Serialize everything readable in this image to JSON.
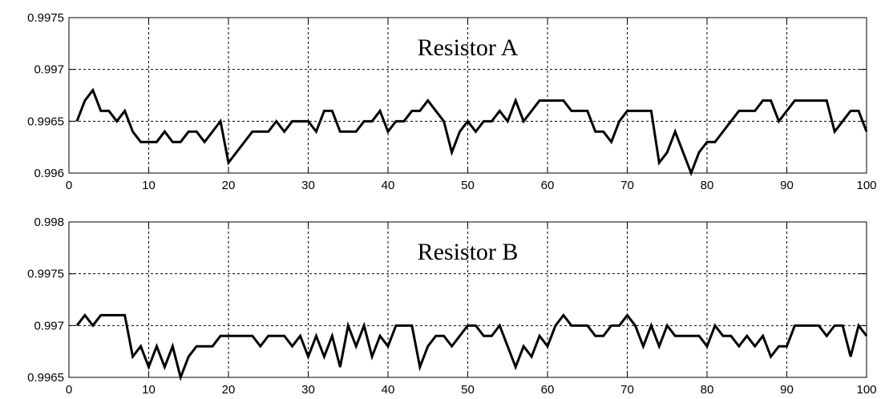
{
  "chart_data": [
    {
      "type": "line",
      "title": "Resistor A",
      "xlabel": "",
      "ylabel": "",
      "xlim": [
        0,
        100
      ],
      "ylim": [
        0.996,
        0.9975
      ],
      "xticks": [
        "0",
        "10",
        "20",
        "30",
        "40",
        "50",
        "60",
        "70",
        "80",
        "90",
        "100"
      ],
      "yticks": [
        "0.996",
        "0.9965",
        "0.997",
        "0.9975"
      ],
      "grid": true,
      "line_color": "#000000",
      "series": [
        {
          "x": [
            1,
            2,
            3,
            4,
            5,
            6,
            7,
            8,
            9,
            10,
            11,
            12,
            13,
            14,
            15,
            16,
            17,
            18,
            19,
            20,
            21,
            22,
            23,
            24,
            25,
            26,
            27,
            28,
            29,
            30,
            31,
            32,
            33,
            34,
            35,
            36,
            37,
            38,
            39,
            40,
            41,
            42,
            43,
            44,
            45,
            46,
            47,
            48,
            49,
            50,
            51,
            52,
            53,
            54,
            55,
            56,
            57,
            58,
            59,
            60,
            61,
            62,
            63,
            64,
            65,
            66,
            67,
            68,
            69,
            70,
            71,
            72,
            73,
            74,
            75,
            76,
            77,
            78,
            79,
            80,
            81,
            82,
            83,
            84,
            85,
            86,
            87,
            88,
            89,
            90,
            91,
            92,
            93,
            94,
            95,
            96,
            97,
            98,
            99,
            100
          ],
          "values": [
            0.9965,
            0.9967,
            0.9968,
            0.9966,
            0.9966,
            0.9965,
            0.9966,
            0.9964,
            0.9963,
            0.9963,
            0.9963,
            0.9964,
            0.9963,
            0.9963,
            0.9964,
            0.9964,
            0.9963,
            0.9964,
            0.9965,
            0.9961,
            0.9962,
            0.9963,
            0.9964,
            0.9964,
            0.9964,
            0.9965,
            0.9964,
            0.9965,
            0.9965,
            0.9965,
            0.9964,
            0.9966,
            0.9966,
            0.9964,
            0.9964,
            0.9964,
            0.9965,
            0.9965,
            0.9966,
            0.9964,
            0.9965,
            0.9965,
            0.9966,
            0.9966,
            0.9967,
            0.9966,
            0.9965,
            0.9962,
            0.9964,
            0.9965,
            0.9964,
            0.9965,
            0.9965,
            0.9966,
            0.9965,
            0.9967,
            0.9965,
            0.9966,
            0.9967,
            0.9967,
            0.9967,
            0.9967,
            0.9966,
            0.9966,
            0.9966,
            0.9964,
            0.9964,
            0.9963,
            0.9965,
            0.9966,
            0.9966,
            0.9966,
            0.9966,
            0.9961,
            0.9962,
            0.9964,
            0.9962,
            0.996,
            0.9962,
            0.9963,
            0.9963,
            0.9964,
            0.9965,
            0.9966,
            0.9966,
            0.9966,
            0.9967,
            0.9967,
            0.9965,
            0.9966,
            0.9967,
            0.9967,
            0.9967,
            0.9967,
            0.9967,
            0.9964,
            0.9965,
            0.9966,
            0.9966,
            0.9964
          ]
        }
      ]
    },
    {
      "type": "line",
      "title": "Resistor B",
      "xlabel": "",
      "ylabel": "",
      "xlim": [
        0,
        100
      ],
      "ylim": [
        0.9965,
        0.998
      ],
      "xticks": [
        "0",
        "10",
        "20",
        "30",
        "40",
        "50",
        "60",
        "70",
        "80",
        "90",
        "100"
      ],
      "yticks": [
        "0.9965",
        "0.997",
        "0.9975",
        "0.998"
      ],
      "grid": true,
      "line_color": "#000000",
      "series": [
        {
          "x": [
            1,
            2,
            3,
            4,
            5,
            6,
            7,
            8,
            9,
            10,
            11,
            12,
            13,
            14,
            15,
            16,
            17,
            18,
            19,
            20,
            21,
            22,
            23,
            24,
            25,
            26,
            27,
            28,
            29,
            30,
            31,
            32,
            33,
            34,
            35,
            36,
            37,
            38,
            39,
            40,
            41,
            42,
            43,
            44,
            45,
            46,
            47,
            48,
            49,
            50,
            51,
            52,
            53,
            54,
            55,
            56,
            57,
            58,
            59,
            60,
            61,
            62,
            63,
            64,
            65,
            66,
            67,
            68,
            69,
            70,
            71,
            72,
            73,
            74,
            75,
            76,
            77,
            78,
            79,
            80,
            81,
            82,
            83,
            84,
            85,
            86,
            87,
            88,
            89,
            90,
            91,
            92,
            93,
            94,
            95,
            96,
            97,
            98,
            99,
            100
          ],
          "values": [
            0.997,
            0.9971,
            0.997,
            0.9971,
            0.9971,
            0.9971,
            0.9971,
            0.9967,
            0.9968,
            0.9966,
            0.9968,
            0.9966,
            0.9968,
            0.9965,
            0.9967,
            0.9968,
            0.9968,
            0.9968,
            0.9969,
            0.9969,
            0.9969,
            0.9969,
            0.9969,
            0.9968,
            0.9969,
            0.9969,
            0.9969,
            0.9968,
            0.9969,
            0.9967,
            0.9969,
            0.9967,
            0.9969,
            0.9966,
            0.997,
            0.9968,
            0.997,
            0.9967,
            0.9969,
            0.9968,
            0.997,
            0.997,
            0.997,
            0.9966,
            0.9968,
            0.9969,
            0.9969,
            0.9968,
            0.9969,
            0.997,
            0.997,
            0.9969,
            0.9969,
            0.997,
            0.9968,
            0.9966,
            0.9968,
            0.9967,
            0.9969,
            0.9968,
            0.997,
            0.9971,
            0.997,
            0.997,
            0.997,
            0.9969,
            0.9969,
            0.997,
            0.997,
            0.9971,
            0.997,
            0.9968,
            0.997,
            0.9968,
            0.997,
            0.9969,
            0.9969,
            0.9969,
            0.9969,
            0.9968,
            0.997,
            0.9969,
            0.9969,
            0.9968,
            0.9969,
            0.9968,
            0.9969,
            0.9967,
            0.9968,
            0.9968,
            0.997,
            0.997,
            0.997,
            0.997,
            0.9969,
            0.997,
            0.997,
            0.9967,
            0.997,
            0.9969
          ]
        }
      ]
    }
  ]
}
